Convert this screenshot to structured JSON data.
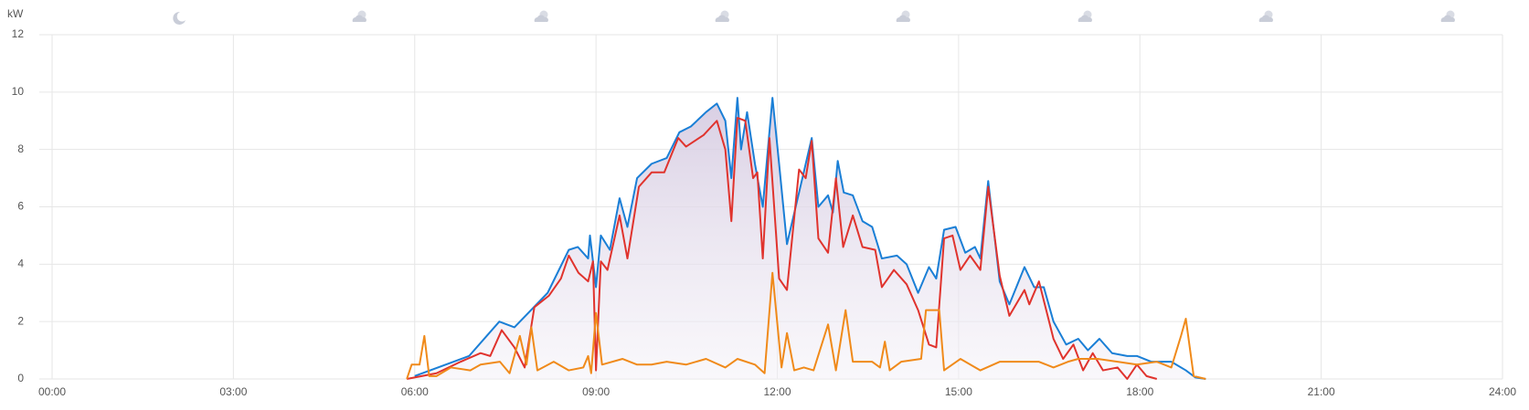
{
  "chart_data": {
    "type": "line",
    "y_label": "kW",
    "xlim": [
      0,
      24
    ],
    "xticks": [
      {
        "value": 0,
        "label": "00:00"
      },
      {
        "value": 3,
        "label": "03:00"
      },
      {
        "value": 6,
        "label": "06:00"
      },
      {
        "value": 9,
        "label": "09:00"
      },
      {
        "value": 12,
        "label": "12:00"
      },
      {
        "value": 15,
        "label": "15:00"
      },
      {
        "value": 18,
        "label": "18:00"
      },
      {
        "value": 21,
        "label": "21:00"
      },
      {
        "value": 24,
        "label": "24:00"
      }
    ],
    "ylim": [
      0,
      12
    ],
    "yticks": [
      0,
      2,
      4,
      6,
      8,
      10,
      12
    ],
    "grid": true,
    "series": [
      {
        "color": "#1a7fd6",
        "area": true,
        "x": [
          6.0,
          6.9,
          7.4,
          7.65,
          8.2,
          8.55,
          8.7,
          8.87,
          8.9,
          9.0,
          9.08,
          9.23,
          9.39,
          9.52,
          9.68,
          9.92,
          10.17,
          10.38,
          10.57,
          10.82,
          11.0,
          11.14,
          11.24,
          11.34,
          11.4,
          11.5,
          11.63,
          11.76,
          11.92,
          12.03,
          12.16,
          12.36,
          12.57,
          12.68,
          12.84,
          12.92,
          13.0,
          13.1,
          13.25,
          13.41,
          13.57,
          13.73,
          13.98,
          14.14,
          14.33,
          14.51,
          14.63,
          14.76,
          14.95,
          15.11,
          15.27,
          15.36,
          15.49,
          15.68,
          15.84,
          16.09,
          16.25,
          16.41,
          16.57,
          16.78,
          16.98,
          17.14,
          17.33,
          17.54,
          17.79,
          17.95,
          18.19,
          18.52,
          18.76,
          18.92,
          19.09
        ],
        "values": [
          0.1,
          0.8,
          2.0,
          1.8,
          3.0,
          4.5,
          4.6,
          4.2,
          5.0,
          3.2,
          5.0,
          4.5,
          6.3,
          5.3,
          7.0,
          7.5,
          7.7,
          8.6,
          8.8,
          9.3,
          9.6,
          9.0,
          7.0,
          9.8,
          8.0,
          9.3,
          7.5,
          6.0,
          9.8,
          7.5,
          4.7,
          6.5,
          8.4,
          6.0,
          6.4,
          5.8,
          7.6,
          6.5,
          6.4,
          5.5,
          5.3,
          4.2,
          4.3,
          4.0,
          3.0,
          3.9,
          3.5,
          5.2,
          5.3,
          4.4,
          4.6,
          4.2,
          6.9,
          3.4,
          2.6,
          3.9,
          3.2,
          3.2,
          2.0,
          1.2,
          1.4,
          1.0,
          1.4,
          0.9,
          0.8,
          0.8,
          0.6,
          0.6,
          0.3,
          0.05,
          0
        ]
      },
      {
        "color": "#e0332d",
        "x": [
          5.87,
          6.36,
          6.76,
          7.09,
          7.25,
          7.44,
          7.65,
          7.82,
          7.98,
          8.22,
          8.42,
          8.55,
          8.71,
          8.87,
          8.95,
          9.0,
          9.08,
          9.19,
          9.39,
          9.52,
          9.71,
          9.92,
          10.13,
          10.36,
          10.49,
          10.78,
          11.0,
          11.14,
          11.24,
          11.34,
          11.47,
          11.6,
          11.67,
          11.76,
          11.87,
          12.03,
          12.16,
          12.36,
          12.47,
          12.57,
          12.68,
          12.84,
          12.97,
          13.09,
          13.25,
          13.41,
          13.62,
          13.73,
          13.93,
          14.14,
          14.33,
          14.51,
          14.63,
          14.76,
          14.9,
          15.03,
          15.19,
          15.36,
          15.49,
          15.68,
          15.84,
          16.09,
          16.17,
          16.33,
          16.57,
          16.73,
          16.9,
          17.06,
          17.22,
          17.39,
          17.63,
          17.79,
          17.95,
          18.11,
          18.28
        ],
        "values": [
          0,
          0.2,
          0.6,
          0.9,
          0.8,
          1.7,
          1.1,
          0.4,
          2.5,
          2.9,
          3.5,
          4.3,
          3.7,
          3.4,
          4.1,
          0.3,
          4.1,
          3.8,
          5.7,
          4.2,
          6.7,
          7.2,
          7.2,
          8.4,
          8.1,
          8.5,
          9.0,
          8.0,
          5.5,
          9.1,
          9.0,
          7.0,
          7.2,
          4.2,
          8.4,
          3.5,
          3.1,
          7.3,
          7.0,
          8.3,
          4.9,
          4.4,
          7.0,
          4.6,
          5.7,
          4.6,
          4.5,
          3.2,
          3.8,
          3.3,
          2.4,
          1.2,
          1.1,
          4.9,
          5.0,
          3.8,
          4.3,
          3.8,
          6.7,
          3.6,
          2.2,
          3.1,
          2.6,
          3.4,
          1.4,
          0.7,
          1.2,
          0.3,
          0.9,
          0.3,
          0.4,
          0.0,
          0.5,
          0.1,
          0.0
        ]
      },
      {
        "color": "#f08a1a",
        "x": [
          5.87,
          5.95,
          6.08,
          6.16,
          6.24,
          6.36,
          6.6,
          6.92,
          7.09,
          7.41,
          7.57,
          7.74,
          7.85,
          7.93,
          8.03,
          8.3,
          8.55,
          8.79,
          8.87,
          8.92,
          9.0,
          9.1,
          9.44,
          9.68,
          9.92,
          10.17,
          10.49,
          10.82,
          11.14,
          11.34,
          11.63,
          11.79,
          11.92,
          12.07,
          12.16,
          12.28,
          12.44,
          12.6,
          12.84,
          12.97,
          13.13,
          13.25,
          13.57,
          13.7,
          13.78,
          13.86,
          14.05,
          14.38,
          14.46,
          14.68,
          14.76,
          15.03,
          15.36,
          15.68,
          16.01,
          16.33,
          16.57,
          16.81,
          16.98,
          17.3,
          17.63,
          17.95,
          18.28,
          18.52,
          18.68,
          18.76,
          18.89,
          19.09
        ],
        "values": [
          0,
          0.5,
          0.5,
          1.5,
          0.1,
          0.1,
          0.4,
          0.3,
          0.5,
          0.6,
          0.2,
          1.5,
          0.5,
          1.8,
          0.3,
          0.6,
          0.3,
          0.4,
          0.8,
          0.2,
          2.3,
          0.5,
          0.7,
          0.5,
          0.5,
          0.6,
          0.5,
          0.7,
          0.4,
          0.7,
          0.5,
          0.2,
          3.7,
          0.4,
          1.6,
          0.3,
          0.4,
          0.3,
          1.9,
          0.3,
          2.4,
          0.6,
          0.6,
          0.4,
          1.3,
          0.3,
          0.6,
          0.7,
          2.4,
          2.4,
          0.3,
          0.7,
          0.3,
          0.6,
          0.6,
          0.6,
          0.4,
          0.6,
          0.7,
          0.7,
          0.6,
          0.5,
          0.6,
          0.4,
          1.5,
          2.1,
          0.1,
          0
        ]
      }
    ]
  }
}
